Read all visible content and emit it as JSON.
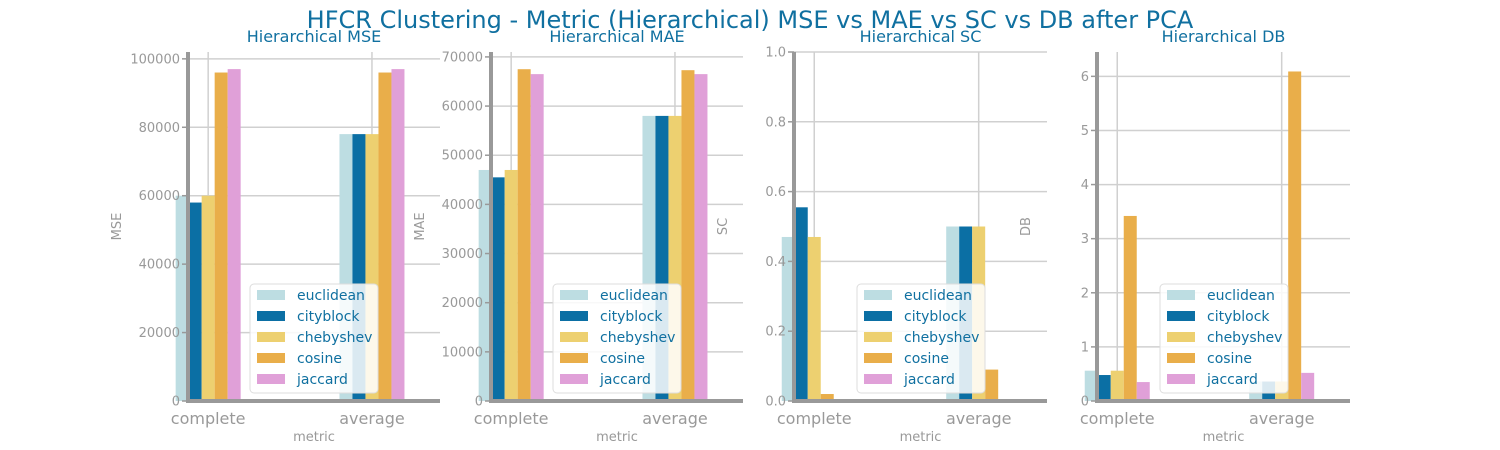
{
  "suptitle": "HFCR Clustering - Metric (Hierarchical) MSE vs MAE vs SC vs DB after PCA",
  "chart_data": [
    {
      "type": "bar",
      "title": "Hierarchical MSE",
      "xlabel": "metric",
      "ylabel": "MSE",
      "categories": [
        "complete",
        "average"
      ],
      "ylim": [
        0,
        102000
      ],
      "yticks": [
        0,
        20000,
        40000,
        60000,
        80000,
        100000
      ],
      "ytick_labels": [
        "0",
        "20000",
        "40000",
        "60000",
        "80000",
        "100000"
      ],
      "grid": true,
      "legend": "lower-right",
      "series": [
        {
          "name": "euclidean",
          "color": "#bddde2",
          "values": [
            60000,
            78000
          ]
        },
        {
          "name": "cityblock",
          "color": "#0b6fa4",
          "values": [
            58000,
            78000
          ]
        },
        {
          "name": "chebyshev",
          "color": "#edd070",
          "values": [
            60000,
            78000
          ]
        },
        {
          "name": "cosine",
          "color": "#e9ae4a",
          "values": [
            96000,
            96000
          ]
        },
        {
          "name": "jaccard",
          "color": "#e0a0d8",
          "values": [
            97000,
            97000
          ]
        }
      ]
    },
    {
      "type": "bar",
      "title": "Hierarchical MAE",
      "xlabel": "metric",
      "ylabel": "MAE",
      "categories": [
        "complete",
        "average"
      ],
      "ylim": [
        0,
        71000
      ],
      "yticks": [
        0,
        10000,
        20000,
        30000,
        40000,
        50000,
        60000,
        70000
      ],
      "ytick_labels": [
        "0",
        "10000",
        "20000",
        "30000",
        "40000",
        "50000",
        "60000",
        "70000"
      ],
      "grid": true,
      "legend": "lower-right",
      "series": [
        {
          "name": "euclidean",
          "color": "#bddde2",
          "values": [
            47000,
            58000
          ]
        },
        {
          "name": "cityblock",
          "color": "#0b6fa4",
          "values": [
            45500,
            58000
          ]
        },
        {
          "name": "chebyshev",
          "color": "#edd070",
          "values": [
            47000,
            58000
          ]
        },
        {
          "name": "cosine",
          "color": "#e9ae4a",
          "values": [
            67500,
            67300
          ]
        },
        {
          "name": "jaccard",
          "color": "#e0a0d8",
          "values": [
            66500,
            66500
          ]
        }
      ]
    },
    {
      "type": "bar",
      "title": "Hierarchical SC",
      "xlabel": "metric",
      "ylabel": "SC",
      "categories": [
        "complete",
        "average"
      ],
      "ylim": [
        0,
        1.0
      ],
      "yticks": [
        0,
        0.2,
        0.4,
        0.6,
        0.8,
        1.0
      ],
      "ytick_labels": [
        "0.0",
        "0.2",
        "0.4",
        "0.6",
        "0.8",
        "1.0"
      ],
      "grid": true,
      "legend": "lower-right",
      "series": [
        {
          "name": "euclidean",
          "color": "#bddde2",
          "values": [
            0.47,
            0.5
          ]
        },
        {
          "name": "cityblock",
          "color": "#0b6fa4",
          "values": [
            0.555,
            0.5
          ]
        },
        {
          "name": "chebyshev",
          "color": "#edd070",
          "values": [
            0.47,
            0.5
          ]
        },
        {
          "name": "cosine",
          "color": "#e9ae4a",
          "values": [
            0.02,
            0.09
          ]
        },
        {
          "name": "jaccard",
          "color": "#e0a0d8",
          "values": [
            0.0,
            0.0
          ]
        }
      ]
    },
    {
      "type": "bar",
      "title": "Hierarchical DB",
      "xlabel": "metric",
      "ylabel": "DB",
      "categories": [
        "complete",
        "average"
      ],
      "ylim": [
        0,
        6.45
      ],
      "yticks": [
        0,
        1,
        2,
        3,
        4,
        5,
        6
      ],
      "ytick_labels": [
        "0",
        "1",
        "2",
        "3",
        "4",
        "5",
        "6"
      ],
      "grid": true,
      "legend": "lower-right",
      "series": [
        {
          "name": "euclidean",
          "color": "#bddde2",
          "values": [
            0.56,
            0.36
          ]
        },
        {
          "name": "cityblock",
          "color": "#0b6fa4",
          "values": [
            0.48,
            0.36
          ]
        },
        {
          "name": "chebyshev",
          "color": "#edd070",
          "values": [
            0.56,
            0.36
          ]
        },
        {
          "name": "cosine",
          "color": "#e9ae4a",
          "values": [
            3.42,
            6.09
          ]
        },
        {
          "name": "jaccard",
          "color": "#e0a0d8",
          "values": [
            0.35,
            0.52
          ]
        }
      ]
    }
  ]
}
